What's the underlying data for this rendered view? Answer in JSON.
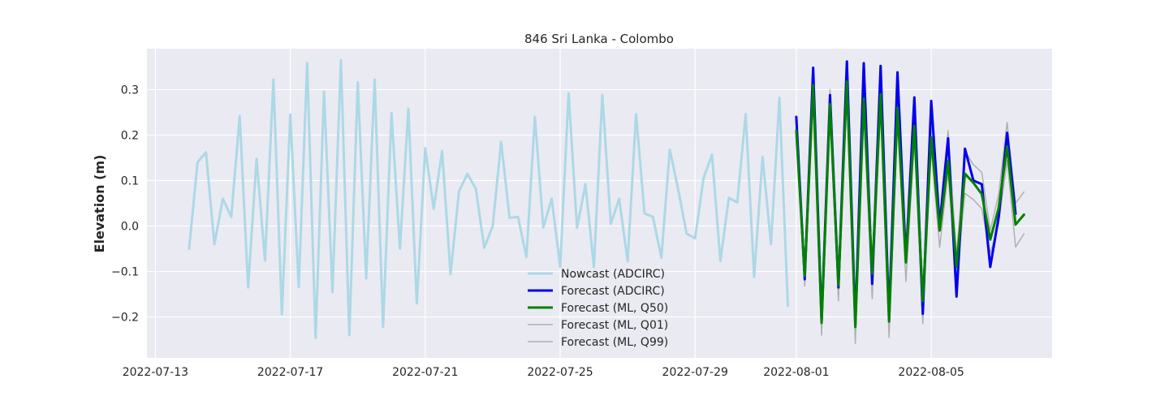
{
  "chart_data": {
    "type": "line",
    "title": "846 Sri Lanka - Colombo",
    "xlabel": "",
    "ylabel": "Elevation (m)",
    "xlim": [
      "2022-07-12T18:00",
      "2022-08-08T14:00"
    ],
    "ylim": [
      -0.29,
      0.39
    ],
    "grid": true,
    "legend_position": "lower-center",
    "x_ticks": [
      "2022-07-13",
      "2022-07-17",
      "2022-07-21",
      "2022-07-25",
      "2022-07-29",
      "2022-08-01",
      "2022-08-05"
    ],
    "y_ticks": [
      -0.2,
      -0.1,
      0.0,
      0.1,
      0.2,
      0.3
    ],
    "series": [
      {
        "name": "Nowcast (ADCIRC)",
        "color": "#add8e6",
        "width": 3,
        "points": [
          [
            "2022-07-14T00:00",
            -0.05
          ],
          [
            "2022-07-14T06:00",
            0.14
          ],
          [
            "2022-07-14T12:00",
            0.162
          ],
          [
            "2022-07-14T18:00",
            -0.04
          ],
          [
            "2022-07-15T00:00",
            0.06
          ],
          [
            "2022-07-15T06:00",
            0.02
          ],
          [
            "2022-07-15T12:00",
            0.242
          ],
          [
            "2022-07-15T18:00",
            -0.135
          ],
          [
            "2022-07-16T00:00",
            0.148
          ],
          [
            "2022-07-16T06:00",
            -0.076
          ],
          [
            "2022-07-16T12:00",
            0.322
          ],
          [
            "2022-07-16T18:00",
            -0.194
          ],
          [
            "2022-07-17T00:00",
            0.245
          ],
          [
            "2022-07-17T06:00",
            -0.134
          ],
          [
            "2022-07-17T12:00",
            0.358
          ],
          [
            "2022-07-17T18:00",
            -0.246
          ],
          [
            "2022-07-18T00:00",
            0.295
          ],
          [
            "2022-07-18T06:00",
            -0.145
          ],
          [
            "2022-07-18T12:00",
            0.365
          ],
          [
            "2022-07-18T18:00",
            -0.24
          ],
          [
            "2022-07-19T00:00",
            0.316
          ],
          [
            "2022-07-19T06:00",
            -0.115
          ],
          [
            "2022-07-19T12:00",
            0.322
          ],
          [
            "2022-07-19T18:00",
            -0.222
          ],
          [
            "2022-07-20T00:00",
            0.248
          ],
          [
            "2022-07-20T06:00",
            -0.05
          ],
          [
            "2022-07-20T12:00",
            0.258
          ],
          [
            "2022-07-20T18:00",
            -0.17
          ],
          [
            "2022-07-21T00:00",
            0.171
          ],
          [
            "2022-07-21T06:00",
            0.038
          ],
          [
            "2022-07-21T12:00",
            0.165
          ],
          [
            "2022-07-21T18:00",
            -0.106
          ],
          [
            "2022-07-22T00:00",
            0.076
          ],
          [
            "2022-07-22T06:00",
            0.115
          ],
          [
            "2022-07-22T12:00",
            0.082
          ],
          [
            "2022-07-22T18:00",
            -0.048
          ],
          [
            "2022-07-23T00:00",
            0.0
          ],
          [
            "2022-07-23T06:00",
            0.185
          ],
          [
            "2022-07-23T12:00",
            0.018
          ],
          [
            "2022-07-23T18:00",
            0.02
          ],
          [
            "2022-07-24T00:00",
            -0.068
          ],
          [
            "2022-07-24T06:00",
            0.24
          ],
          [
            "2022-07-24T12:00",
            -0.003
          ],
          [
            "2022-07-24T18:00",
            0.06
          ],
          [
            "2022-07-25T00:00",
            -0.09
          ],
          [
            "2022-07-25T06:00",
            0.292
          ],
          [
            "2022-07-25T12:00",
            -0.004
          ],
          [
            "2022-07-25T18:00",
            0.092
          ],
          [
            "2022-07-26T00:00",
            -0.09
          ],
          [
            "2022-07-26T06:00",
            0.288
          ],
          [
            "2022-07-26T12:00",
            0.005
          ],
          [
            "2022-07-26T18:00",
            0.06
          ],
          [
            "2022-07-27T00:00",
            -0.078
          ],
          [
            "2022-07-27T06:00",
            0.246
          ],
          [
            "2022-07-27T12:00",
            0.028
          ],
          [
            "2022-07-27T18:00",
            0.02
          ],
          [
            "2022-07-28T00:00",
            -0.07
          ],
          [
            "2022-07-28T06:00",
            0.168
          ],
          [
            "2022-07-28T12:00",
            0.08
          ],
          [
            "2022-07-28T18:00",
            -0.017
          ],
          [
            "2022-07-29T00:00",
            -0.027
          ],
          [
            "2022-07-29T06:00",
            0.105
          ],
          [
            "2022-07-29T12:00",
            0.157
          ],
          [
            "2022-07-29T18:00",
            -0.077
          ],
          [
            "2022-07-30T00:00",
            0.062
          ],
          [
            "2022-07-30T06:00",
            0.052
          ],
          [
            "2022-07-30T12:00",
            0.246
          ],
          [
            "2022-07-30T18:00",
            -0.112
          ],
          [
            "2022-07-31T00:00",
            0.152
          ],
          [
            "2022-07-31T06:00",
            -0.04
          ],
          [
            "2022-07-31T12:00",
            0.282
          ],
          [
            "2022-07-31T18:00",
            -0.175
          ]
        ]
      },
      {
        "name": "Forecast (ADCIRC)",
        "color": "#0000ee",
        "width": 3,
        "points": [
          [
            "2022-08-01T00:00",
            0.24
          ],
          [
            "2022-08-01T06:00",
            -0.117
          ],
          [
            "2022-08-01T12:00",
            0.348
          ],
          [
            "2022-08-01T18:00",
            -0.21
          ],
          [
            "2022-08-02T00:00",
            0.288
          ],
          [
            "2022-08-02T06:00",
            -0.135
          ],
          [
            "2022-08-02T12:00",
            0.362
          ],
          [
            "2022-08-02T18:00",
            -0.215
          ],
          [
            "2022-08-03T00:00",
            0.358
          ],
          [
            "2022-08-03T06:00",
            -0.127
          ],
          [
            "2022-08-03T12:00",
            0.352
          ],
          [
            "2022-08-03T18:00",
            -0.2
          ],
          [
            "2022-08-04T00:00",
            0.338
          ],
          [
            "2022-08-04T06:00",
            -0.075
          ],
          [
            "2022-08-04T12:00",
            0.283
          ],
          [
            "2022-08-04T18:00",
            -0.193
          ],
          [
            "2022-08-05T00:00",
            0.275
          ],
          [
            "2022-08-05T06:00",
            0.0
          ],
          [
            "2022-08-05T12:00",
            0.193
          ],
          [
            "2022-08-05T18:00",
            -0.155
          ],
          [
            "2022-08-06T00:00",
            0.17
          ],
          [
            "2022-08-06T06:00",
            0.1
          ],
          [
            "2022-08-06T12:00",
            0.092
          ],
          [
            "2022-08-06T18:00",
            -0.09
          ],
          [
            "2022-08-07T00:00",
            0.02
          ],
          [
            "2022-08-07T06:00",
            0.205
          ],
          [
            "2022-08-07T12:00",
            0.027
          ]
        ]
      },
      {
        "name": "Forecast (ML, Q50)",
        "color": "#008000",
        "width": 3,
        "points": [
          [
            "2022-08-01T00:00",
            0.21
          ],
          [
            "2022-08-01T06:00",
            -0.11
          ],
          [
            "2022-08-01T12:00",
            0.31
          ],
          [
            "2022-08-01T18:00",
            -0.213
          ],
          [
            "2022-08-02T00:00",
            0.268
          ],
          [
            "2022-08-02T06:00",
            -0.13
          ],
          [
            "2022-08-02T12:00",
            0.318
          ],
          [
            "2022-08-02T18:00",
            -0.222
          ],
          [
            "2022-08-03T00:00",
            0.28
          ],
          [
            "2022-08-03T06:00",
            -0.105
          ],
          [
            "2022-08-03T12:00",
            0.29
          ],
          [
            "2022-08-03T18:00",
            -0.21
          ],
          [
            "2022-08-04T00:00",
            0.26
          ],
          [
            "2022-08-04T06:00",
            -0.08
          ],
          [
            "2022-08-04T12:00",
            0.22
          ],
          [
            "2022-08-04T18:00",
            -0.165
          ],
          [
            "2022-08-05T00:00",
            0.195
          ],
          [
            "2022-08-05T06:00",
            -0.01
          ],
          [
            "2022-08-05T12:00",
            0.143
          ],
          [
            "2022-08-05T18:00",
            -0.09
          ],
          [
            "2022-08-06T00:00",
            0.115
          ],
          [
            "2022-08-06T06:00",
            0.095
          ],
          [
            "2022-08-06T12:00",
            0.07
          ],
          [
            "2022-08-06T18:00",
            -0.03
          ],
          [
            "2022-08-07T00:00",
            0.04
          ],
          [
            "2022-08-07T06:00",
            0.175
          ],
          [
            "2022-08-07T12:00",
            0.003
          ],
          [
            "2022-08-07T18:00",
            0.025
          ]
        ]
      },
      {
        "name": "Forecast (ML, Q01)",
        "color": "#b0b0b0",
        "width": 1.5,
        "points": [
          [
            "2022-08-01T00:00",
            0.2
          ],
          [
            "2022-08-01T06:00",
            -0.132
          ],
          [
            "2022-08-01T12:00",
            0.29
          ],
          [
            "2022-08-01T18:00",
            -0.24
          ],
          [
            "2022-08-02T00:00",
            0.24
          ],
          [
            "2022-08-02T06:00",
            -0.165
          ],
          [
            "2022-08-02T12:00",
            0.29
          ],
          [
            "2022-08-02T18:00",
            -0.258
          ],
          [
            "2022-08-03T00:00",
            0.25
          ],
          [
            "2022-08-03T06:00",
            -0.16
          ],
          [
            "2022-08-03T12:00",
            0.26
          ],
          [
            "2022-08-03T18:00",
            -0.245
          ],
          [
            "2022-08-04T00:00",
            0.23
          ],
          [
            "2022-08-04T06:00",
            -0.122
          ],
          [
            "2022-08-04T12:00",
            0.19
          ],
          [
            "2022-08-04T18:00",
            -0.215
          ],
          [
            "2022-08-05T00:00",
            0.17
          ],
          [
            "2022-08-05T06:00",
            -0.047
          ],
          [
            "2022-08-05T12:00",
            0.118
          ],
          [
            "2022-08-05T18:00",
            -0.12
          ],
          [
            "2022-08-06T00:00",
            0.072
          ],
          [
            "2022-08-06T06:00",
            0.058
          ],
          [
            "2022-08-06T12:00",
            0.038
          ],
          [
            "2022-08-06T18:00",
            -0.06
          ],
          [
            "2022-08-07T00:00",
            0.005
          ],
          [
            "2022-08-07T06:00",
            0.145
          ],
          [
            "2022-08-07T12:00",
            -0.046
          ],
          [
            "2022-08-07T18:00",
            -0.017
          ]
        ]
      },
      {
        "name": "Forecast (ML, Q99)",
        "color": "#b0b0b0",
        "width": 1.5,
        "points": [
          [
            "2022-08-01T00:00",
            0.225
          ],
          [
            "2022-08-01T06:00",
            -0.095
          ],
          [
            "2022-08-01T12:00",
            0.33
          ],
          [
            "2022-08-01T18:00",
            -0.19
          ],
          [
            "2022-08-02T00:00",
            0.3
          ],
          [
            "2022-08-02T06:00",
            -0.105
          ],
          [
            "2022-08-02T12:00",
            0.34
          ],
          [
            "2022-08-02T18:00",
            -0.195
          ],
          [
            "2022-08-03T00:00",
            0.31
          ],
          [
            "2022-08-03T06:00",
            -0.08
          ],
          [
            "2022-08-03T12:00",
            0.31
          ],
          [
            "2022-08-03T18:00",
            -0.185
          ],
          [
            "2022-08-04T00:00",
            0.285
          ],
          [
            "2022-08-04T06:00",
            -0.05
          ],
          [
            "2022-08-04T12:00",
            0.245
          ],
          [
            "2022-08-04T18:00",
            -0.14
          ],
          [
            "2022-08-05T00:00",
            0.22
          ],
          [
            "2022-08-05T06:00",
            0.022
          ],
          [
            "2022-08-05T12:00",
            0.21
          ],
          [
            "2022-08-05T18:00",
            -0.065
          ],
          [
            "2022-08-06T00:00",
            0.165
          ],
          [
            "2022-08-06T06:00",
            0.135
          ],
          [
            "2022-08-06T12:00",
            0.118
          ],
          [
            "2022-08-06T18:00",
            -0.01
          ],
          [
            "2022-08-07T00:00",
            0.07
          ],
          [
            "2022-08-07T06:00",
            0.228
          ],
          [
            "2022-08-07T12:00",
            0.05
          ],
          [
            "2022-08-07T18:00",
            0.075
          ]
        ]
      }
    ]
  }
}
